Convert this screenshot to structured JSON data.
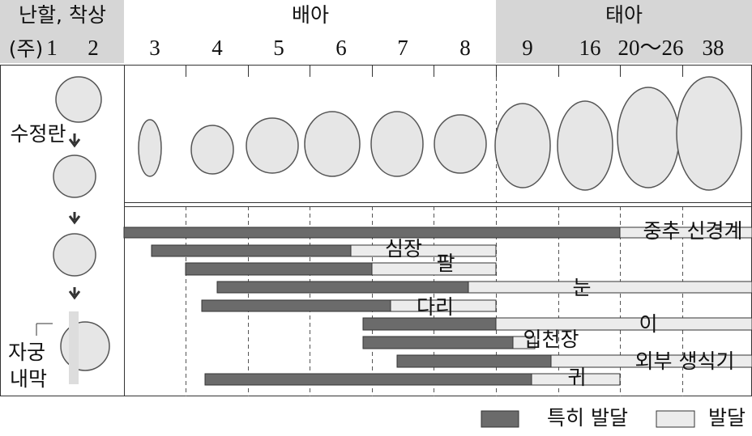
{
  "header": {
    "cleavage": "난할, 착상",
    "week_unit": "(주)",
    "embryo": "배아",
    "fetus": "태아",
    "weeks": [
      "1",
      "2",
      "3",
      "4",
      "5",
      "6",
      "7",
      "8",
      "9",
      "16",
      "20～26",
      "38"
    ]
  },
  "stages": {
    "zygote": "수정란",
    "endometrium": [
      "자궁",
      "내막"
    ]
  },
  "organs": [
    "중추 신경계",
    "심장",
    "팔",
    "눈",
    "다리",
    "이",
    "입천장",
    "외부 생식기",
    "귀"
  ],
  "legend": {
    "critical": "특히 발달",
    "development": "발달"
  }
}
